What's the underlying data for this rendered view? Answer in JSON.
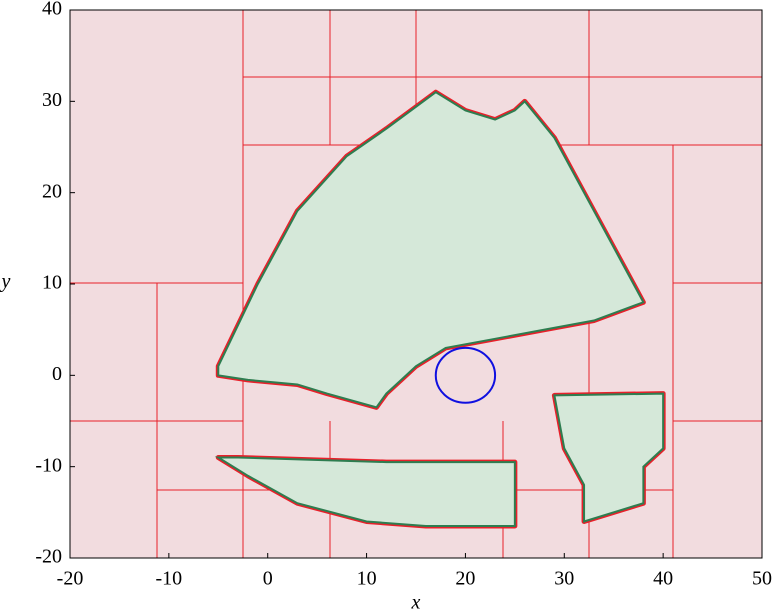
{
  "chart_data": {
    "type": "region",
    "xlabel": "x",
    "ylabel": "y",
    "xlim": [
      -20,
      50
    ],
    "ylim": [
      -20,
      40
    ],
    "xticks": [
      -20,
      -10,
      0,
      10,
      20,
      30,
      40,
      50
    ],
    "yticks": [
      -20,
      -10,
      0,
      10,
      20,
      30,
      40
    ],
    "background": "#f2dcdf",
    "edge_color": "#e8202a",
    "series": [
      {
        "color": "#d5e8d9",
        "line": "#2e7d50",
        "x": [
          -5,
          -1,
          3,
          8,
          12,
          17,
          20,
          23,
          25,
          26,
          29,
          31,
          34,
          36,
          38,
          33,
          28,
          23,
          18,
          15,
          12,
          11,
          6,
          3,
          -2,
          -5
        ],
        "y": [
          1,
          10,
          18,
          24,
          27,
          31,
          29,
          28,
          29,
          30,
          26,
          22,
          16,
          12,
          8,
          6,
          5,
          4,
          3,
          1,
          -2,
          -3.5,
          -2,
          -1,
          -0.5,
          0
        ]
      },
      {
        "color": "#d5e8d9",
        "line": "#2e7d50",
        "x": [
          -5,
          -3,
          12,
          25,
          25,
          16,
          10,
          3,
          -2
        ],
        "y": [
          -9,
          -9,
          -9.5,
          -9.5,
          -16.5,
          -16.5,
          -16,
          -14,
          -11
        ]
      },
      {
        "color": "#d5e8d9",
        "line": "#2e7d50",
        "x": [
          29,
          40,
          40,
          38,
          38,
          32,
          32,
          30
        ],
        "y": [
          -2.2,
          -2,
          -8,
          -10,
          -14,
          -16,
          -12,
          -8
        ]
      }
    ],
    "circle": {
      "x": 20,
      "y": 0,
      "r": 3,
      "color": "#1010e0"
    }
  }
}
